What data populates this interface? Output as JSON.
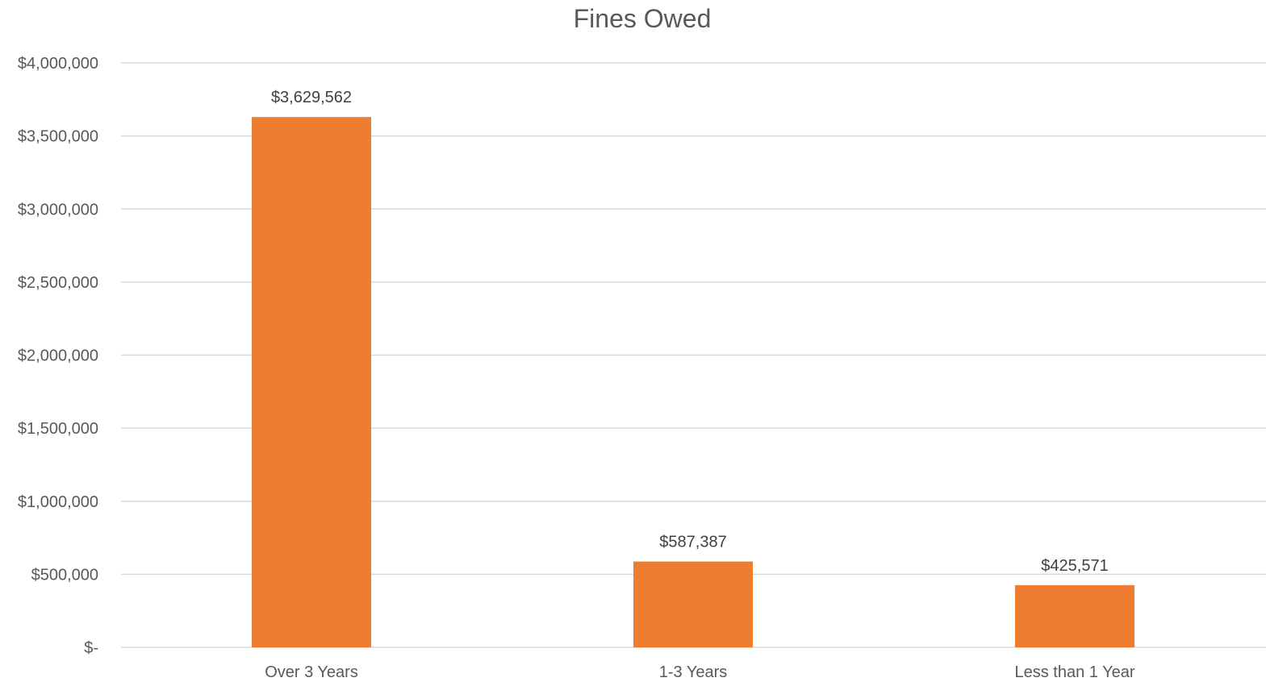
{
  "chart_data": {
    "type": "bar",
    "title": "Fines Owed",
    "categories": [
      "Over 3 Years",
      "1-3 Years",
      "Less than 1 Year"
    ],
    "values": [
      3629562,
      587387,
      425571
    ],
    "value_labels": [
      "$3,629,562",
      "$587,387",
      "$425,571"
    ],
    "ylim": [
      0,
      4000000
    ],
    "yticks": [
      0,
      500000,
      1000000,
      1500000,
      2000000,
      2500000,
      3000000,
      3500000,
      4000000
    ],
    "ytick_labels": [
      "$-",
      "$500,000",
      "$1,000,000",
      "$1,500,000",
      "$2,000,000",
      "$2,500,000",
      "$3,000,000",
      "$3,500,000",
      "$4,000,000"
    ],
    "xlabel": "",
    "ylabel": "",
    "grid": true,
    "legend": "none",
    "colors": {
      "bar": "#ED7D31",
      "grid": "#D9D9D9",
      "text": "#595959"
    }
  }
}
